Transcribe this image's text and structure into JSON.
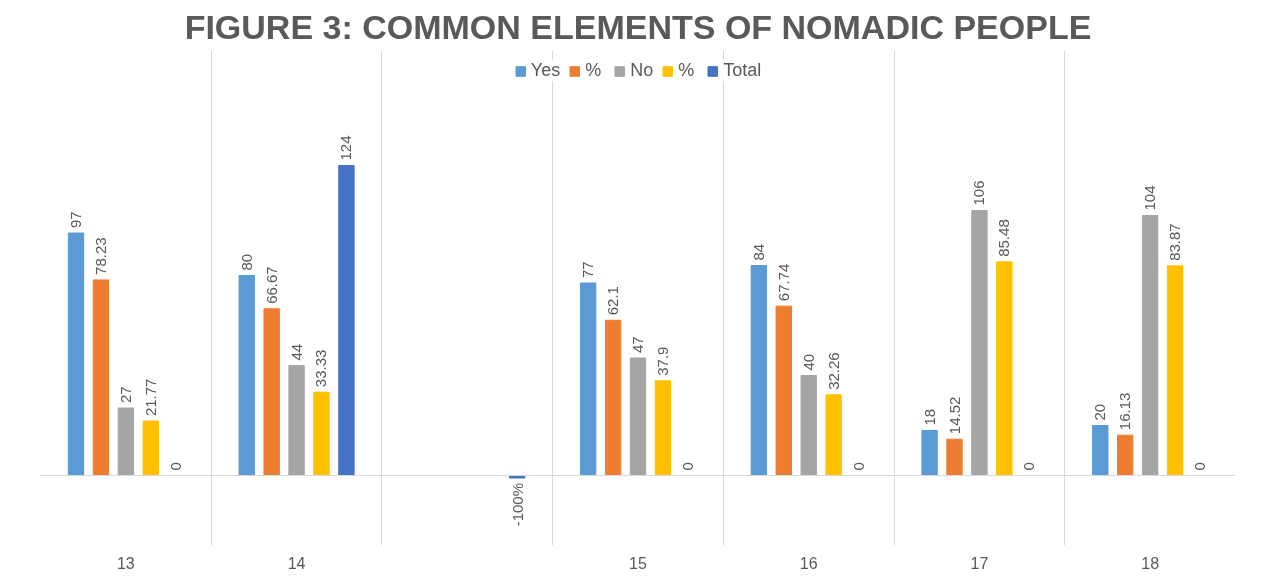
{
  "chart_data": {
    "type": "bar",
    "title": "FIGURE 3: COMMON ELEMENTS OF NOMADIC PEOPLE",
    "categories": [
      "13",
      "14",
      null,
      "15",
      "16",
      "17",
      "18"
    ],
    "series": [
      {
        "name": "Yes",
        "color": "#5b9bd5",
        "values": [
          97,
          80,
          null,
          77,
          84,
          18,
          20
        ]
      },
      {
        "name": "%",
        "color": "#ed7d31",
        "values": [
          78.23,
          66.67,
          null,
          62.1,
          67.74,
          14.52,
          16.13
        ]
      },
      {
        "name": "No",
        "color": "#a5a5a5",
        "values": [
          27,
          44,
          null,
          47,
          40,
          106,
          104
        ]
      },
      {
        "name": "%",
        "color": "#ffc000",
        "values": [
          21.77,
          33.33,
          null,
          37.9,
          32.26,
          85.48,
          83.87
        ]
      },
      {
        "name": "Total",
        "color": "#4472c4",
        "values": [
          0,
          124,
          -1,
          0,
          0,
          0,
          0
        ],
        "value_labels": [
          "0",
          "124",
          "-100%",
          "0",
          "0",
          "0",
          "0"
        ]
      }
    ],
    "ylim": [
      -28,
      170
    ],
    "tick_labels": "x",
    "grid": "x",
    "legend": "top",
    "data_labels": true
  }
}
